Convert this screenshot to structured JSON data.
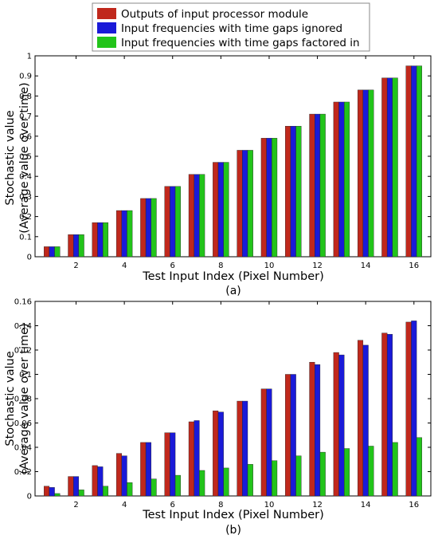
{
  "legend": [
    {
      "label": "Outputs of input processor module",
      "color": "#c0281c"
    },
    {
      "label": "Input frequencies with time gaps ignored",
      "color": "#1a1ad8"
    },
    {
      "label": "Input frequencies with time gaps factored in",
      "color": "#22c41a"
    }
  ],
  "chart_data": [
    {
      "type": "bar",
      "subcaption": "(a)",
      "xlabel": "Test Input Index (Pixel Number)",
      "ylabel_line1": "Stochastic value",
      "ylabel_line2": "(Average value over time)",
      "categories": [
        1,
        2,
        3,
        4,
        5,
        6,
        7,
        8,
        9,
        10,
        11,
        12,
        13,
        14,
        15,
        16
      ],
      "xticks": [
        "2",
        "4",
        "6",
        "8",
        "10",
        "12",
        "14",
        "16"
      ],
      "xtick_values": [
        2,
        4,
        6,
        8,
        10,
        12,
        14,
        16
      ],
      "yticks": [
        "0",
        "0.1",
        "0.2",
        "0.3",
        "0.4",
        "0.5",
        "0.6",
        "0.7",
        "0.8",
        "0.9",
        "1"
      ],
      "ytick_values": [
        0,
        0.1,
        0.2,
        0.3,
        0.4,
        0.5,
        0.6,
        0.7,
        0.8,
        0.9,
        1
      ],
      "ylim": [
        0,
        1
      ],
      "series": [
        {
          "name": "Outputs of input processor module",
          "values": [
            0.05,
            0.11,
            0.17,
            0.23,
            0.29,
            0.35,
            0.41,
            0.47,
            0.53,
            0.59,
            0.65,
            0.71,
            0.77,
            0.83,
            0.89,
            0.95
          ]
        },
        {
          "name": "Input frequencies with time gaps ignored",
          "values": [
            0.05,
            0.11,
            0.17,
            0.23,
            0.29,
            0.35,
            0.41,
            0.47,
            0.53,
            0.59,
            0.65,
            0.71,
            0.77,
            0.83,
            0.89,
            0.95
          ]
        },
        {
          "name": "Input frequencies with time gaps factored in",
          "values": [
            0.05,
            0.11,
            0.17,
            0.23,
            0.29,
            0.35,
            0.41,
            0.47,
            0.53,
            0.59,
            0.65,
            0.71,
            0.77,
            0.83,
            0.89,
            0.95
          ]
        }
      ]
    },
    {
      "type": "bar",
      "subcaption": "(b)",
      "xlabel": "Test Input Index (Pixel Number)",
      "ylabel_line1": "Stochastic value",
      "ylabel_line2": "(Average value over time)",
      "categories": [
        1,
        2,
        3,
        4,
        5,
        6,
        7,
        8,
        9,
        10,
        11,
        12,
        13,
        14,
        15,
        16
      ],
      "xticks": [
        "2",
        "4",
        "6",
        "8",
        "10",
        "12",
        "14",
        "16"
      ],
      "xtick_values": [
        2,
        4,
        6,
        8,
        10,
        12,
        14,
        16
      ],
      "yticks": [
        "0",
        "0.02",
        "0.04",
        "0.06",
        "0.08",
        "0.1",
        "0.12",
        "0.14",
        "0.16"
      ],
      "ytick_values": [
        0,
        0.02,
        0.04,
        0.06,
        0.08,
        0.1,
        0.12,
        0.14,
        0.16
      ],
      "ylim": [
        0,
        0.16
      ],
      "series": [
        {
          "name": "Outputs of input processor module",
          "values": [
            0.008,
            0.016,
            0.025,
            0.035,
            0.044,
            0.052,
            0.061,
            0.07,
            0.078,
            0.088,
            0.1,
            0.11,
            0.118,
            0.128,
            0.134,
            0.143
          ]
        },
        {
          "name": "Input frequencies with time gaps ignored",
          "values": [
            0.007,
            0.016,
            0.024,
            0.033,
            0.044,
            0.052,
            0.062,
            0.069,
            0.078,
            0.088,
            0.1,
            0.108,
            0.116,
            0.124,
            0.133,
            0.144
          ]
        },
        {
          "name": "Input frequencies with time gaps factored in",
          "values": [
            0.002,
            0.005,
            0.008,
            0.011,
            0.014,
            0.017,
            0.021,
            0.023,
            0.026,
            0.029,
            0.033,
            0.036,
            0.039,
            0.041,
            0.044,
            0.048
          ]
        }
      ]
    }
  ]
}
